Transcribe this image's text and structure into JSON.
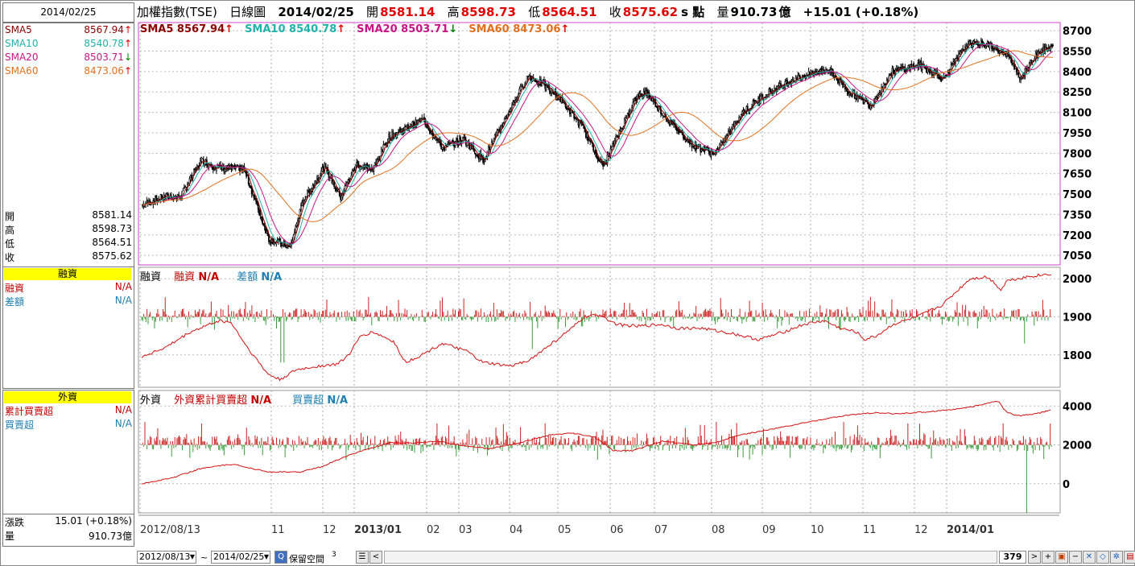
{
  "date_box": "2014/02/25",
  "title": {
    "name": "加權指數(TSE)",
    "period": "日線圖",
    "date": "2014/02/25",
    "open_lbl": "開",
    "open": "8581.14",
    "high_lbl": "高",
    "high": "8598.73",
    "low_lbl": "低",
    "low": "8564.51",
    "close_lbl": "收",
    "close": "8575.62",
    "unit": "s 點",
    "vol_lbl": "量",
    "vol": "910.73",
    "vol_unit": "億",
    "chg": "+15.01 (+0.18%)"
  },
  "sma": [
    {
      "name": "SMA5",
      "value": "8567.94",
      "dir": "up",
      "color": "#8b0000"
    },
    {
      "name": "SMA10",
      "value": "8540.78",
      "dir": "up",
      "color": "#20b2aa"
    },
    {
      "name": "SMA20",
      "value": "8503.71",
      "dir": "down",
      "color": "#c71585"
    },
    {
      "name": "SMA60",
      "value": "8473.06",
      "dir": "up",
      "color": "#e07020"
    }
  ],
  "arrow_up": "↑",
  "arrow_down": "↓",
  "ohlc": [
    {
      "k": "開",
      "v": "8581.14"
    },
    {
      "k": "高",
      "v": "8598.73"
    },
    {
      "k": "低",
      "v": "8564.51"
    },
    {
      "k": "收",
      "v": "8575.62"
    }
  ],
  "margin": {
    "head": "融資",
    "rows": [
      {
        "k": "融資",
        "v": "N/A",
        "color": "#c00000"
      },
      {
        "k": "差額",
        "v": "N/A",
        "color": "#1e7fb0"
      }
    ],
    "panel_title": "融資",
    "l1": "融資",
    "l1v": "N/A",
    "l2": "差額",
    "l2v": "N/A"
  },
  "foreign": {
    "head": "外資",
    "rows": [
      {
        "k": "累計買賣超",
        "v": "N/A",
        "color": "#c00000"
      },
      {
        "k": "買賣超",
        "v": "N/A",
        "color": "#1e7fb0"
      }
    ],
    "panel_title": "外資",
    "l1": "外資累計買賣超",
    "l1v": "N/A",
    "l2": "買賣超",
    "l2v": "N/A"
  },
  "foot": [
    {
      "k": "漲跌",
      "v": "15.01 (+0.18%)"
    },
    {
      "k": "量",
      "v": "910.73億"
    }
  ],
  "bottom": {
    "from": "2012/08/13",
    "tilde": "~",
    "to": "2014/02/25",
    "reserve": "保留空間",
    "reserve_val": "3",
    "count": "379"
  },
  "chart_data": [
    {
      "type": "line",
      "subtype": "candlestick",
      "title": "加權指數(TSE) 日線圖",
      "x": [
        "2012/08/13",
        "11",
        "12",
        "2013/01",
        "02",
        "03",
        "04",
        "05",
        "06",
        "07",
        "08",
        "09",
        "10",
        "11",
        "12",
        "2014/01"
      ],
      "yticks": [
        8700,
        8550,
        8400,
        8250,
        8100,
        7950,
        7800,
        7650,
        7500,
        7350,
        7200,
        7050
      ],
      "ylim": [
        6980,
        8760
      ],
      "close_anchors": [
        [
          0,
          7420
        ],
        [
          20,
          7480
        ],
        [
          35,
          7480
        ],
        [
          55,
          7750
        ],
        [
          68,
          7700
        ],
        [
          95,
          7680
        ],
        [
          118,
          7170
        ],
        [
          138,
          7110
        ],
        [
          150,
          7450
        ],
        [
          170,
          7700
        ],
        [
          185,
          7480
        ],
        [
          200,
          7720
        ],
        [
          215,
          7680
        ],
        [
          230,
          7920
        ],
        [
          250,
          8000
        ],
        [
          262,
          8050
        ],
        [
          280,
          7840
        ],
        [
          300,
          7900
        ],
        [
          318,
          7750
        ],
        [
          335,
          8000
        ],
        [
          360,
          8370
        ],
        [
          375,
          8300
        ],
        [
          390,
          8200
        ],
        [
          410,
          8000
        ],
        [
          430,
          7700
        ],
        [
          445,
          7950
        ],
        [
          460,
          8200
        ],
        [
          470,
          8250
        ],
        [
          490,
          8050
        ],
        [
          515,
          7850
        ],
        [
          535,
          7800
        ],
        [
          560,
          8100
        ],
        [
          585,
          8250
        ],
        [
          610,
          8350
        ],
        [
          640,
          8420
        ],
        [
          660,
          8250
        ],
        [
          680,
          8150
        ],
        [
          700,
          8400
        ],
        [
          725,
          8450
        ],
        [
          748,
          8350
        ],
        [
          770,
          8600
        ],
        [
          790,
          8600
        ],
        [
          810,
          8500
        ],
        [
          820,
          8350
        ],
        [
          836,
          8550
        ],
        [
          850,
          8575
        ]
      ],
      "series": [
        {
          "name": "SMA5",
          "period": 5
        },
        {
          "name": "SMA10",
          "period": 10
        },
        {
          "name": "SMA20",
          "period": 20
        },
        {
          "name": "SMA60",
          "period": 60
        }
      ]
    },
    {
      "type": "bar",
      "title": "融資",
      "yticks": [
        2000,
        1900,
        1800
      ],
      "ylim": [
        1715,
        2030
      ],
      "line_anchors": [
        [
          0,
          1795
        ],
        [
          30,
          1820
        ],
        [
          60,
          1860
        ],
        [
          95,
          1890
        ],
        [
          110,
          1885
        ],
        [
          130,
          1820
        ],
        [
          155,
          1750
        ],
        [
          170,
          1735
        ],
        [
          190,
          1760
        ],
        [
          215,
          1770
        ],
        [
          240,
          1775
        ],
        [
          255,
          1800
        ],
        [
          270,
          1850
        ],
        [
          285,
          1860
        ],
        [
          310,
          1835
        ],
        [
          325,
          1780
        ],
        [
          345,
          1800
        ],
        [
          370,
          1830
        ],
        [
          400,
          1810
        ],
        [
          420,
          1780
        ],
        [
          455,
          1770
        ],
        [
          480,
          1790
        ],
        [
          505,
          1830
        ],
        [
          530,
          1870
        ],
        [
          545,
          1900
        ],
        [
          565,
          1905
        ],
        [
          585,
          1880
        ],
        [
          610,
          1875
        ],
        [
          640,
          1880
        ],
        [
          660,
          1870
        ],
        [
          690,
          1870
        ],
        [
          730,
          1855
        ],
        [
          760,
          1840
        ],
        [
          790,
          1860
        ],
        [
          815,
          1880
        ],
        [
          840,
          1890
        ],
        [
          860,
          1870
        ],
        [
          880,
          1860
        ],
        [
          890,
          1840
        ],
        [
          905,
          1850
        ],
        [
          925,
          1880
        ],
        [
          955,
          1900
        ],
        [
          985,
          1930
        ],
        [
          1000,
          1960
        ],
        [
          1020,
          2000
        ],
        [
          1040,
          2005
        ],
        [
          1050,
          1990
        ],
        [
          1058,
          1970
        ],
        [
          1065,
          1995
        ],
        [
          1090,
          2005
        ],
        [
          1120,
          2013
        ]
      ],
      "bar_values": "red/green daily net change bars centred at 1900"
    },
    {
      "type": "bar",
      "title": "外資",
      "yticks": [
        4000,
        2000,
        0
      ],
      "ylim": [
        -1500,
        4800
      ],
      "line_anchors": [
        [
          0,
          0
        ],
        [
          40,
          300
        ],
        [
          80,
          800
        ],
        [
          120,
          1000
        ],
        [
          170,
          600
        ],
        [
          210,
          600
        ],
        [
          240,
          900
        ],
        [
          270,
          1400
        ],
        [
          300,
          1800
        ],
        [
          330,
          2100
        ],
        [
          360,
          2100
        ],
        [
          390,
          2200
        ],
        [
          420,
          2000
        ],
        [
          460,
          1800
        ],
        [
          500,
          2100
        ],
        [
          540,
          2500
        ],
        [
          570,
          2600
        ],
        [
          600,
          2400
        ],
        [
          625,
          1700
        ],
        [
          650,
          1700
        ],
        [
          690,
          2200
        ],
        [
          730,
          2000
        ],
        [
          760,
          2100
        ],
        [
          790,
          2500
        ],
        [
          820,
          2700
        ],
        [
          860,
          3000
        ],
        [
          900,
          3300
        ],
        [
          940,
          3550
        ],
        [
          970,
          3650
        ],
        [
          1000,
          3600
        ],
        [
          1040,
          3700
        ],
        [
          1080,
          3850
        ],
        [
          1100,
          3950
        ],
        [
          1120,
          4150
        ],
        [
          1135,
          4250
        ],
        [
          1145,
          3700
        ],
        [
          1160,
          3500
        ],
        [
          1185,
          3600
        ],
        [
          1205,
          3800
        ]
      ],
      "bar_values": "red/green daily net buy/sell bars centred at 2000"
    }
  ]
}
